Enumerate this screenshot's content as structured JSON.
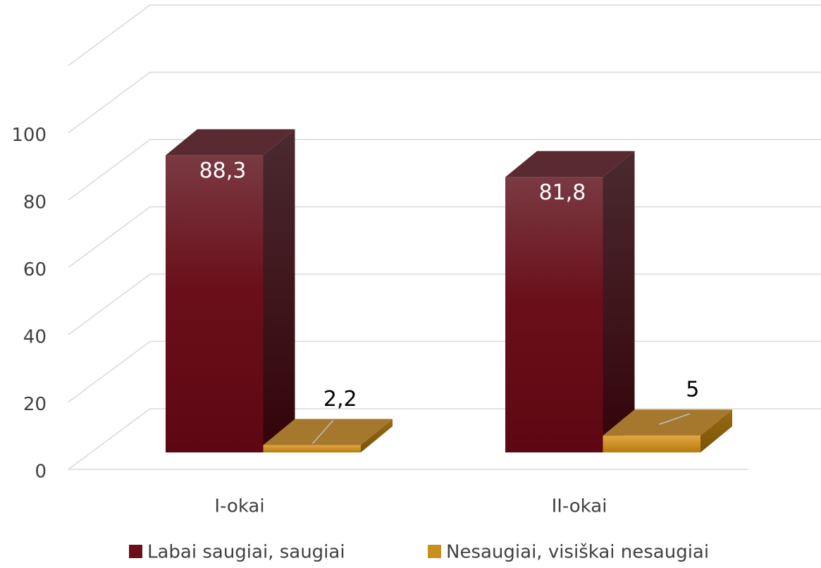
{
  "chart_data": {
    "type": "bar3d",
    "categories": [
      "I-okai",
      "II-okai"
    ],
    "series": [
      {
        "name": "Labai saugiai, saugiai",
        "color": "#6b0f1a",
        "values": [
          88.3,
          81.8
        ],
        "value_labels": [
          "88,3",
          "81,8"
        ]
      },
      {
        "name": "Nesaugiai, visiškai nesaugiai",
        "color": "#c8901f",
        "values": [
          2.2,
          5
        ],
        "value_labels": [
          "2,2",
          "5"
        ]
      }
    ],
    "ylim": [
      0,
      120
    ],
    "yticks": [
      0,
      20,
      40,
      60,
      80,
      100
    ],
    "grid": true,
    "legend": "bottom"
  }
}
